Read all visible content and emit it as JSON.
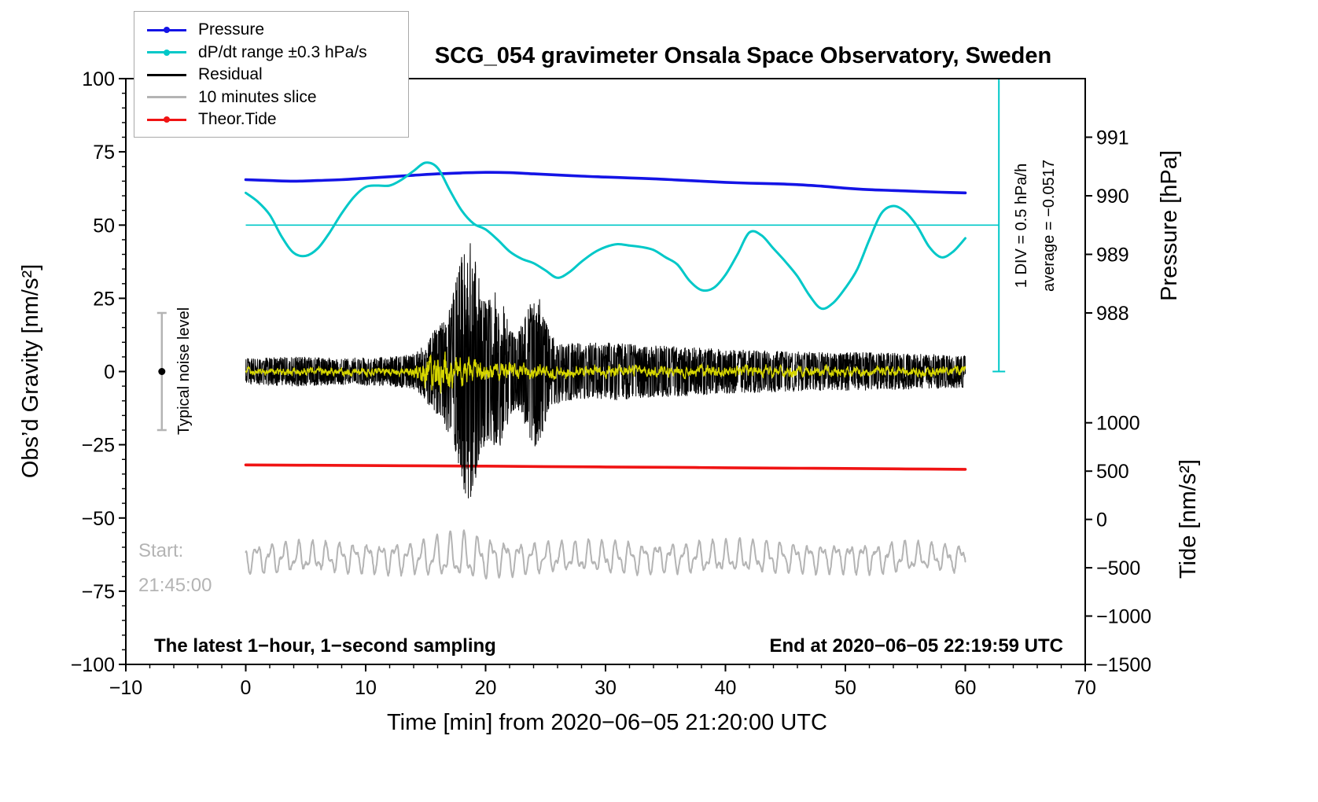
{
  "chart_data": {
    "type": "line",
    "title": "SCG_054 gravimeter Onsala Space Observatory, Sweden",
    "xlabel": "Time [min] from 2020−06−05 21:20:00 UTC",
    "ylabel_left": "Obs’d Gravity [nm/s²]",
    "ylabel_pressure": "Pressure [hPa]",
    "ylabel_tide": "Tide [nm/s²]",
    "xlim": [
      -10,
      70
    ],
    "ylim": [
      -100,
      100
    ],
    "grid": false,
    "legend_position": "top-left",
    "xticks": {
      "values": [
        -10,
        0,
        10,
        20,
        30,
        40,
        50,
        60,
        70
      ],
      "labels": [
        "−10",
        "0",
        "10",
        "20",
        "30",
        "40",
        "50",
        "60",
        "70"
      ],
      "minor_step": 2
    },
    "yticks_left": {
      "values": [
        -100,
        -75,
        -50,
        -25,
        0,
        25,
        50,
        75,
        100
      ],
      "labels": [
        "−100",
        "−75",
        "−50",
        "−25",
        "0",
        "25",
        "50",
        "75",
        "100"
      ],
      "minor_step": 5
    },
    "pressure_axis": {
      "labels": [
        "991",
        "990",
        "989",
        "988"
      ],
      "gravity_positions": [
        80,
        60,
        40,
        20
      ],
      "note": "right axis upper scale; 1 hPa = 20 gravity-axis units, 990 hPa at gravity 60"
    },
    "tide_axis": {
      "labels": [
        "1000",
        "500",
        "0",
        "−500",
        "−1000",
        "−1500"
      ],
      "gravity_positions": [
        -17.5,
        -34,
        -50.5,
        -67,
        -83.5,
        -100
      ],
      "note": "right axis lower scale; 500 tide units = 16.5 gravity-axis units"
    },
    "legend": [
      {
        "label": "Pressure",
        "color": "#1414e6",
        "dot": true
      },
      {
        "label": "dP/dt range ±0.3 hPa/s",
        "color": "#00c8c8",
        "dot": true
      },
      {
        "label": "Residual",
        "color": "#000000",
        "dot": false
      },
      {
        "label": "10 minutes slice",
        "color": "#b4b4b4",
        "dot": false
      },
      {
        "label": "Theor.Tide",
        "color": "#f01414",
        "dot": true
      }
    ],
    "annotations": {
      "noise_label": "Typical noise level",
      "noise_bar": {
        "x": -7,
        "y_from": -20,
        "y_to": 20,
        "dot_y": 0
      },
      "start_line1": "Start:",
      "start_line2": "21:45:00",
      "bottom_left": "The latest 1−hour, 1−second sampling",
      "bottom_right": "End at 2020−06−05 22:19:59 UTC",
      "div_label": "1 DIV = 0.5 hPa/h",
      "avg_label": "average = −0.0517",
      "ref_line": {
        "y": 50,
        "x_from": 0,
        "x_to": 62.8,
        "color": "#00c8c8"
      },
      "scale_bar": {
        "x": 62.8,
        "y_from": 0,
        "y_to": 100,
        "color": "#00c8c8"
      }
    },
    "series": {
      "pressure": {
        "color": "#1414e6",
        "width": 3.6,
        "x": [
          0,
          2,
          4,
          6,
          8,
          10,
          12,
          14,
          16,
          18,
          20,
          22,
          24,
          26,
          28,
          30,
          32,
          34,
          36,
          38,
          40,
          42,
          44,
          46,
          48,
          50,
          52,
          54,
          56,
          58,
          60
        ],
        "y": [
          65.5,
          65.2,
          65.0,
          65.2,
          65.5,
          66.0,
          66.5,
          67.0,
          67.5,
          67.8,
          68.0,
          67.9,
          67.5,
          67.1,
          66.7,
          66.4,
          66.1,
          65.8,
          65.4,
          65.0,
          64.6,
          64.3,
          64.1,
          63.8,
          63.3,
          62.6,
          62.1,
          61.8,
          61.5,
          61.2,
          61.0
        ]
      },
      "dpdt": {
        "color": "#00c8c8",
        "width": 3,
        "x": [
          0,
          1,
          2,
          3,
          4,
          5,
          6,
          7,
          8,
          9,
          10,
          11,
          12,
          13,
          14,
          15,
          16,
          17,
          18,
          19,
          20,
          21,
          22,
          23,
          24,
          25,
          26,
          27,
          28,
          29,
          30,
          31,
          32,
          33,
          34,
          35,
          36,
          37,
          38,
          39,
          40,
          41,
          42,
          43,
          44,
          45,
          46,
          47,
          48,
          49,
          50,
          51,
          52,
          53,
          54,
          55,
          56,
          57,
          58,
          59,
          60
        ],
        "y": [
          61,
          58,
          53.5,
          46,
          40.5,
          39.5,
          42,
          47.5,
          54,
          59.5,
          63,
          63.5,
          63.5,
          65.5,
          68.5,
          71.3,
          69.5,
          62,
          55,
          50.5,
          48.5,
          45,
          41,
          38.5,
          37,
          34.5,
          32,
          34,
          37.5,
          40.5,
          42.5,
          43.5,
          43,
          42.5,
          41.5,
          39,
          36.5,
          31,
          27.8,
          28.5,
          33,
          40,
          47.5,
          46.5,
          42,
          37.5,
          32.5,
          26,
          21.5,
          23.5,
          28.5,
          35,
          45,
          54,
          56.5,
          54.5,
          49.5,
          42.5,
          39,
          41,
          45.5
        ]
      },
      "theor_tide": {
        "color": "#f01414",
        "width": 3.6,
        "x": [
          0,
          5,
          10,
          15,
          20,
          25,
          30,
          35,
          40,
          45,
          50,
          55,
          60
        ],
        "y": [
          -31.9,
          -32.0,
          -32.1,
          -32.2,
          -32.3,
          -32.45,
          -32.6,
          -32.7,
          -32.85,
          -33.0,
          -33.1,
          -33.25,
          -33.4
        ]
      },
      "residual": {
        "color": "#000000",
        "width": 1,
        "dx": 0.02,
        "seed": 20200605,
        "envelope_x": [
          0,
          4,
          8,
          12,
          14,
          14.8,
          15.5,
          16.2,
          17,
          17.6,
          18.2,
          18.7,
          19.2,
          19.6,
          20.2,
          20.8,
          21.4,
          22,
          22.6,
          23.2,
          23.8,
          24.3,
          24.8,
          25.5,
          26.5,
          28,
          30,
          33,
          36,
          40,
          44,
          48,
          52,
          56,
          60
        ],
        "envelope_amp": [
          4.5,
          5,
          4.5,
          5,
          6,
          9,
          13,
          16,
          22,
          32,
          43,
          45,
          38,
          28,
          24,
          28,
          26,
          16,
          12,
          18,
          25,
          28,
          20,
          12,
          10,
          9.5,
          10,
          9,
          8.5,
          7.5,
          7,
          6.5,
          6.5,
          6,
          5.5
        ]
      },
      "residual_filtered": {
        "color": "#d6d600",
        "width": 1.3,
        "dx": 0.02,
        "seed": 615,
        "envelope_x": [
          0,
          5,
          10,
          13.5,
          14.5,
          15.2,
          16,
          16.8,
          17.5,
          18.5,
          19.5,
          21,
          23,
          25,
          28,
          32,
          38,
          45,
          52,
          60
        ],
        "envelope_amp": [
          1.3,
          1.5,
          1.4,
          1.6,
          3.5,
          7,
          8,
          7.5,
          5.5,
          4.5,
          4,
          3.5,
          3,
          2.6,
          2.2,
          2,
          2,
          1.9,
          1.8,
          1.8
        ]
      },
      "slice": {
        "color": "#b4b4b4",
        "width": 2,
        "dx": 0.04,
        "seed": 77,
        "center": -63.5,
        "periods": [
          1.15,
          0.55
        ],
        "amps": [
          3.8,
          2.0
        ],
        "envelope_x": [
          0,
          8,
          14,
          16.5,
          18.5,
          20.5,
          23,
          27,
          31,
          35,
          39,
          43,
          47,
          51,
          55,
          60
        ],
        "envelope_e": [
          1.0,
          1.0,
          1.05,
          1.45,
          1.6,
          1.3,
          1.0,
          1.0,
          1.1,
          0.95,
          1.05,
          1.15,
          0.95,
          1.0,
          1.0,
          0.9
        ]
      }
    }
  }
}
